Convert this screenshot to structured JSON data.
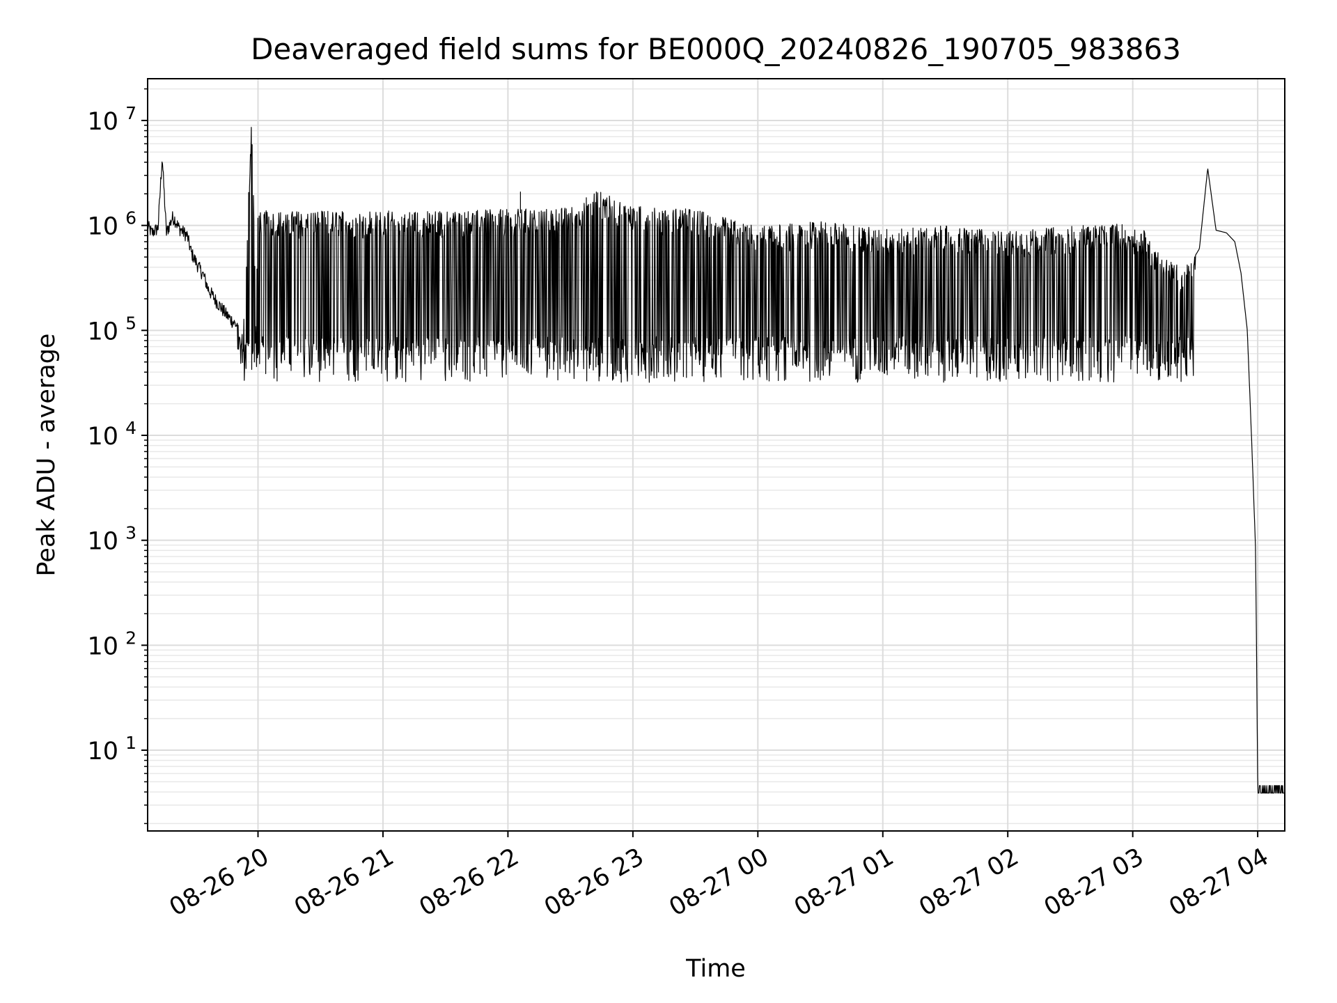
{
  "chart_data": {
    "type": "line",
    "title": "Deaveraged field sums for BE000Q_20240826_190705_983863",
    "xlabel": "Time",
    "ylabel": "Peak ADU - average",
    "yscale": "log",
    "ylim": [
      1.7,
      25000000
    ],
    "xlim": [
      "2024-08-26 19:07",
      "2024-08-27 04:13"
    ],
    "grid": true,
    "line_color": "#000000",
    "x_ticks": [
      {
        "value": "2024-08-26 20:00",
        "label": "08-26 20"
      },
      {
        "value": "2024-08-26 21:00",
        "label": "08-26 21"
      },
      {
        "value": "2024-08-26 22:00",
        "label": "08-26 22"
      },
      {
        "value": "2024-08-26 23:00",
        "label": "08-26 23"
      },
      {
        "value": "2024-08-27 00:00",
        "label": "08-27 00"
      },
      {
        "value": "2024-08-27 01:00",
        "label": "08-27 01"
      },
      {
        "value": "2024-08-27 02:00",
        "label": "08-27 02"
      },
      {
        "value": "2024-08-27 03:00",
        "label": "08-27 03"
      },
      {
        "value": "2024-08-27 04:00",
        "label": "08-27 04"
      }
    ],
    "y_ticks": [
      {
        "value": 10,
        "base": "10",
        "exp": "1"
      },
      {
        "value": 100,
        "base": "10",
        "exp": "2"
      },
      {
        "value": 1000,
        "base": "10",
        "exp": "3"
      },
      {
        "value": 10000,
        "base": "10",
        "exp": "4"
      },
      {
        "value": 100000,
        "base": "10",
        "exp": "5"
      },
      {
        "value": 1000000,
        "base": "10",
        "exp": "6"
      },
      {
        "value": 10000000,
        "base": "10",
        "exp": "7"
      }
    ],
    "series": [
      {
        "x": [
          "2024-08-26 19:07",
          "2024-08-26 19:09",
          "2024-08-26 19:12",
          "2024-08-26 19:14",
          "2024-08-26 19:16",
          "2024-08-26 19:19",
          "2024-08-26 19:20",
          "2024-08-26 19:22",
          "2024-08-26 19:26",
          "2024-08-26 19:28",
          "2024-08-26 19:31",
          "2024-08-26 19:34",
          "2024-08-26 19:36",
          "2024-08-26 19:40",
          "2024-08-26 19:45",
          "2024-08-26 19:50",
          "2024-08-26 19:53",
          "2024-08-26 19:57",
          "2024-08-26 19:59",
          "2024-08-26 20:00",
          "2024-08-26 20:05",
          "2024-08-26 20:30",
          "2024-08-26 21:00",
          "2024-08-26 21:30",
          "2024-08-26 22:00",
          "2024-08-26 22:30",
          "2024-08-26 22:42",
          "2024-08-26 23:00",
          "2024-08-26 23:30",
          "2024-08-26 23:50",
          "2024-08-27 00:00",
          "2024-08-27 00:30",
          "2024-08-27 01:00",
          "2024-08-27 01:30",
          "2024-08-27 02:00",
          "2024-08-27 02:30",
          "2024-08-27 02:55",
          "2024-08-27 03:05",
          "2024-08-27 03:15",
          "2024-08-27 03:25",
          "2024-08-27 03:32",
          "2024-08-27 03:36",
          "2024-08-27 03:40",
          "2024-08-27 03:45",
          "2024-08-27 03:49",
          "2024-08-27 03:52",
          "2024-08-27 03:55",
          "2024-08-27 03:57",
          "2024-08-27 03:59",
          "2024-08-27 04:00",
          "2024-08-27 04:13"
        ],
        "y": [
          1000000,
          850000,
          950000,
          4500000,
          850000,
          1200000,
          1150000,
          950000,
          800000,
          550000,
          420000,
          330000,
          250000,
          190000,
          140000,
          110000,
          95000,
          12500000,
          130000,
          1300000,
          1250000,
          1250000,
          1250000,
          1250000,
          1300000,
          1350000,
          2000000,
          1400000,
          1300000,
          1000000,
          900000,
          1000000,
          850000,
          900000,
          800000,
          900000,
          950000,
          850000,
          450000,
          350000,
          600000,
          3500000,
          900000,
          850000,
          700000,
          350000,
          100000,
          10000,
          800,
          5,
          4
        ]
      }
    ]
  }
}
